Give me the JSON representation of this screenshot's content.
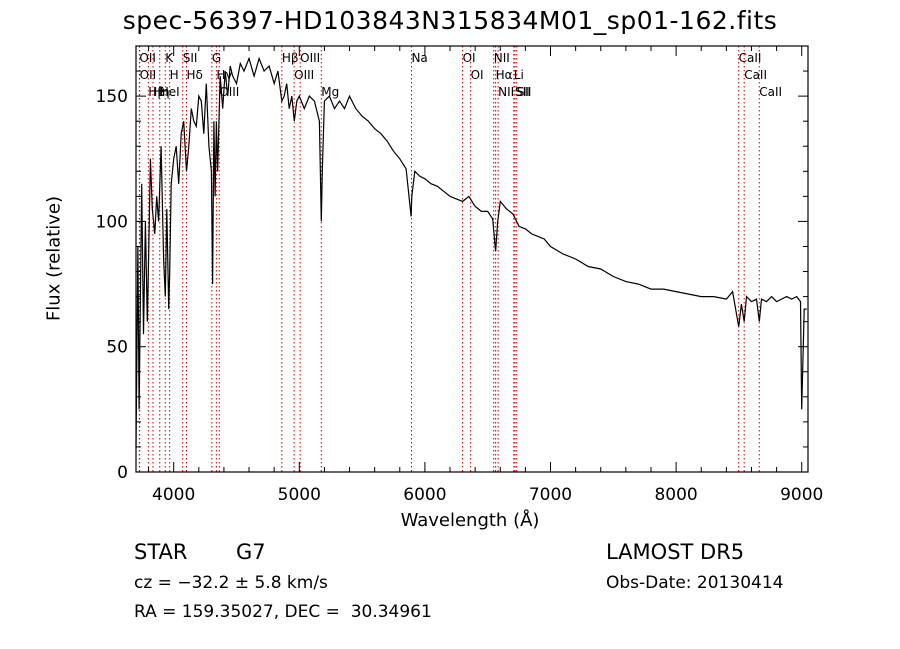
{
  "chart_data": {
    "type": "line",
    "title": "spec-56397-HD103843N315834M01_sp01-162.fits",
    "xlabel": "Wavelength (Å)",
    "ylabel": "Flux (relative)",
    "xlim": [
      3700,
      9050
    ],
    "ylim": [
      0,
      170
    ],
    "xticks": [
      4000,
      5000,
      6000,
      7000,
      8000,
      9000
    ],
    "yticks": [
      0,
      50,
      100,
      150
    ],
    "grid": false,
    "series": [
      {
        "x": [
          3700,
          3715,
          3725,
          3735,
          3745,
          3760,
          3775,
          3790,
          3800,
          3815,
          3830,
          3850,
          3865,
          3880,
          3900,
          3920,
          3933,
          3945,
          3960,
          3968,
          3980,
          4000,
          4020,
          4040,
          4060,
          4080,
          4102,
          4120,
          4140,
          4160,
          4180,
          4200,
          4220,
          4240,
          4260,
          4280,
          4300,
          4310,
          4320,
          4330,
          4340,
          4350,
          4370,
          4390,
          4410,
          4430,
          4450,
          4470,
          4500,
          4530,
          4560,
          4600,
          4640,
          4680,
          4720,
          4760,
          4800,
          4830,
          4861,
          4880,
          4900,
          4920,
          4940,
          4960,
          4980,
          5000,
          5040,
          5080,
          5120,
          5160,
          5175,
          5183,
          5200,
          5240,
          5280,
          5320,
          5360,
          5400,
          5450,
          5500,
          5550,
          5600,
          5650,
          5700,
          5750,
          5800,
          5850,
          5890,
          5896,
          5920,
          5960,
          6000,
          6050,
          6100,
          6150,
          6200,
          6250,
          6300,
          6350,
          6400,
          6450,
          6500,
          6540,
          6563,
          6580,
          6600,
          6650,
          6700,
          6750,
          6800,
          6850,
          6900,
          6950,
          7000,
          7100,
          7200,
          7300,
          7400,
          7500,
          7600,
          7700,
          7800,
          7900,
          8000,
          8100,
          8200,
          8300,
          8400,
          8450,
          8498,
          8520,
          8542,
          8560,
          8600,
          8640,
          8662,
          8680,
          8720,
          8760,
          8800,
          8840,
          8880,
          8920,
          8960,
          8990,
          9000,
          9020,
          9040
        ],
        "y": [
          10,
          90,
          25,
          70,
          115,
          55,
          100,
          60,
          85,
          125,
          105,
          95,
          110,
          100,
          130,
          85,
          70,
          105,
          65,
          80,
          115,
          125,
          130,
          115,
          135,
          140,
          120,
          130,
          145,
          140,
          138,
          150,
          148,
          135,
          155,
          130,
          120,
          75,
          140,
          110,
          140,
          120,
          158,
          145,
          160,
          150,
          162,
          158,
          155,
          163,
          160,
          165,
          158,
          165,
          160,
          162,
          155,
          160,
          148,
          150,
          155,
          145,
          150,
          140,
          148,
          150,
          145,
          150,
          148,
          140,
          100,
          120,
          148,
          150,
          145,
          148,
          145,
          150,
          145,
          142,
          140,
          137,
          135,
          132,
          128,
          125,
          121,
          102,
          110,
          120,
          118,
          117,
          115,
          114,
          112,
          110,
          109,
          108,
          110,
          106,
          104,
          104,
          101,
          88,
          100,
          108,
          105,
          103,
          98,
          97,
          95,
          94,
          93,
          90,
          87,
          85,
          82,
          81,
          78,
          76,
          75,
          73,
          73,
          72,
          71,
          70,
          70,
          69,
          72,
          58,
          67,
          60,
          70,
          68,
          69,
          60,
          69,
          68,
          70,
          68,
          69,
          70,
          69,
          70,
          68,
          25,
          65,
          65
        ]
      }
    ],
    "line_markers": [
      {
        "label": "Hβ",
        "x": 3798
      },
      {
        "label": "OII",
        "x": 3727
      },
      {
        "label": "OII",
        "x": 3729
      },
      {
        "label": "K",
        "x": 3933
      },
      {
        "label": "HeI",
        "x": 3889
      },
      {
        "label": "Hη",
        "x": 3835
      },
      {
        "label": "H",
        "x": 3968
      },
      {
        "label": "Hδ",
        "x": 4102
      },
      {
        "label": "SII",
        "x": 4072
      },
      {
        "label": "OIII",
        "x": 4363
      },
      {
        "label": "Hγ",
        "x": 4340
      },
      {
        "label": "G",
        "x": 4304
      },
      {
        "label": "OIII",
        "x": 4959
      },
      {
        "label": "OIII",
        "x": 5007
      },
      {
        "label": "Hβ",
        "x": 4861
      },
      {
        "label": "Mg",
        "x": 5175
      },
      {
        "label": "Na",
        "x": 5893
      },
      {
        "label": "OI",
        "x": 6300
      },
      {
        "label": "OI",
        "x": 6364
      },
      {
        "label": "Hα",
        "x": 6563
      },
      {
        "label": "NII",
        "x": 6548
      },
      {
        "label": "NII",
        "x": 6583
      },
      {
        "label": "SII",
        "x": 6717
      },
      {
        "label": "Li",
        "x": 6708
      },
      {
        "label": "SII",
        "x": 6731
      },
      {
        "label": "CaII",
        "x": 8498
      },
      {
        "label": "CaII",
        "x": 8542
      },
      {
        "label": "CaII",
        "x": 8662
      }
    ]
  },
  "info": {
    "class_label": "STAR",
    "subclass": "G7",
    "survey": "LAMOST DR5",
    "cz": "cz = −32.2 ± 5.8 km/s",
    "obs_date": "Obs-Date: 20130414",
    "coords": "RA = 159.35027, DEC =  30.34961"
  },
  "colors": {
    "spectrum": "#000000",
    "line_markers": "#cc0000",
    "axes": "#000000"
  }
}
